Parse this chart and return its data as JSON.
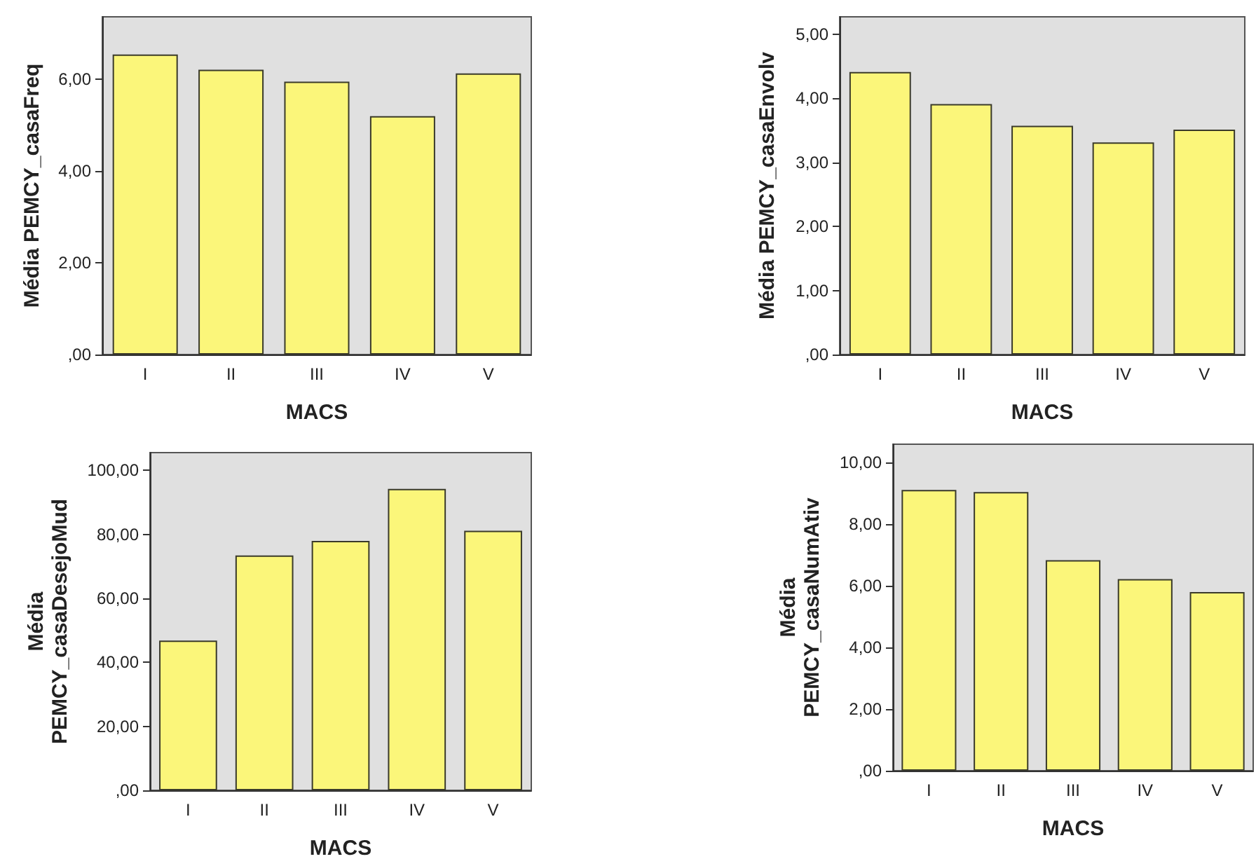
{
  "chart_data": [
    {
      "type": "bar",
      "categories": [
        "I",
        "II",
        "III",
        "IV",
        "V"
      ],
      "values": [
        6.53,
        6.2,
        5.94,
        5.19,
        6.12
      ],
      "color": "#fbf67a",
      "xlabel": "MACS",
      "ylabel": "Média PEMCY_casaFreq",
      "ylim": [
        0,
        7.35
      ],
      "yticks": [
        {
          "value": 0,
          "label": ",00"
        },
        {
          "value": 2,
          "label": "2,00"
        },
        {
          "value": 4,
          "label": "4,00"
        },
        {
          "value": 6,
          "label": "6,00"
        }
      ],
      "grid": false
    },
    {
      "type": "bar",
      "categories": [
        "I",
        "II",
        "III",
        "IV",
        "V"
      ],
      "values": [
        4.41,
        3.91,
        3.57,
        3.31,
        3.51
      ],
      "color": "#fbf67a",
      "xlabel": "MACS",
      "ylabel": "Média PEMCY_casaEnvolv",
      "ylim": [
        0,
        5.27
      ],
      "yticks": [
        {
          "value": 0,
          "label": ",00"
        },
        {
          "value": 1,
          "label": "1,00"
        },
        {
          "value": 2,
          "label": "2,00"
        },
        {
          "value": 3,
          "label": "3,00"
        },
        {
          "value": 4,
          "label": "4,00"
        },
        {
          "value": 5,
          "label": "5,00"
        }
      ],
      "grid": false
    },
    {
      "type": "bar",
      "categories": [
        "I",
        "II",
        "III",
        "IV",
        "V"
      ],
      "values": [
        46.8,
        73.4,
        77.9,
        94.2,
        81.1
      ],
      "color": "#fbf67a",
      "xlabel": "MACS",
      "ylabel": "Média PEMCY_casaDesejoMud",
      "ylim": [
        0,
        105.5
      ],
      "yticks": [
        {
          "value": 0,
          "label": ",00"
        },
        {
          "value": 20,
          "label": "20,00"
        },
        {
          "value": 40,
          "label": "40,00"
        },
        {
          "value": 60,
          "label": "60,00"
        },
        {
          "value": 80,
          "label": "80,00"
        },
        {
          "value": 100,
          "label": "100,00"
        }
      ],
      "grid": false
    },
    {
      "type": "bar",
      "categories": [
        "I",
        "II",
        "III",
        "IV",
        "V"
      ],
      "values": [
        9.1,
        9.03,
        6.82,
        6.21,
        5.79
      ],
      "color": "#fbf67a",
      "xlabel": "MACS",
      "ylabel": "Média PEMCY_casaNumAtiv",
      "ylim": [
        0,
        10.58
      ],
      "yticks": [
        {
          "value": 0,
          "label": ",00"
        },
        {
          "value": 2,
          "label": "2,00"
        },
        {
          "value": 4,
          "label": "4,00"
        },
        {
          "value": 6,
          "label": "6,00"
        },
        {
          "value": 8,
          "label": "8,00"
        },
        {
          "value": 10,
          "label": "10,00"
        }
      ],
      "grid": false
    }
  ]
}
